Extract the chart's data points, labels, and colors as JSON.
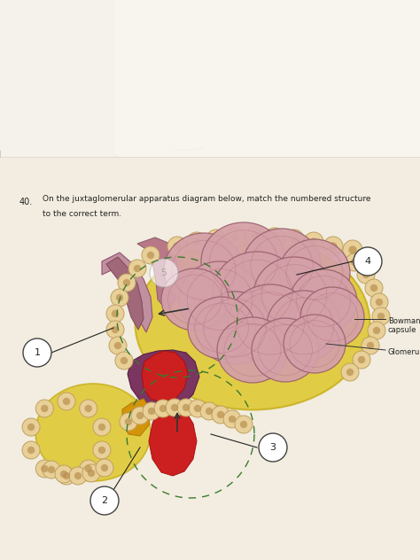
{
  "bg_wood_color": "#7A5535",
  "bg_paper_color": "#F2EDE0",
  "paper2_color": "#F0EBE0",
  "paper3_color": "#EDE8DC",
  "question_num": "40.",
  "question_line1": "On the juxtaglomerular apparatus diagram below, match the numbered structure",
  "question_line2": "to the correct term.",
  "yellow_blob": "#D4B830",
  "yellow_blob_fill": "#E8D060",
  "glom_pink": "#D8A0A8",
  "glom_edge": "#9060708",
  "glom_dark": "#C07888",
  "vessel_purple": "#7A3850",
  "vessel_dark": "#5A2035",
  "vessel_pink": "#C08090",
  "red_blood": "#CC2020",
  "red_dark": "#AA1010",
  "orange_cells": "#D4940A",
  "cell_fill": "#E8D098",
  "cell_edge": "#C0A060",
  "cell_nucleus": "#B89050",
  "dashed_green": "#3A7A30",
  "label_circle_fill": "#FFFFFF",
  "label_circle_edge": "#333333",
  "arrow_color": "#222222",
  "text_color": "#222222",
  "bowmans_text": "Bowman's\ncapsule",
  "glomerulus_text": "Glomerulus"
}
